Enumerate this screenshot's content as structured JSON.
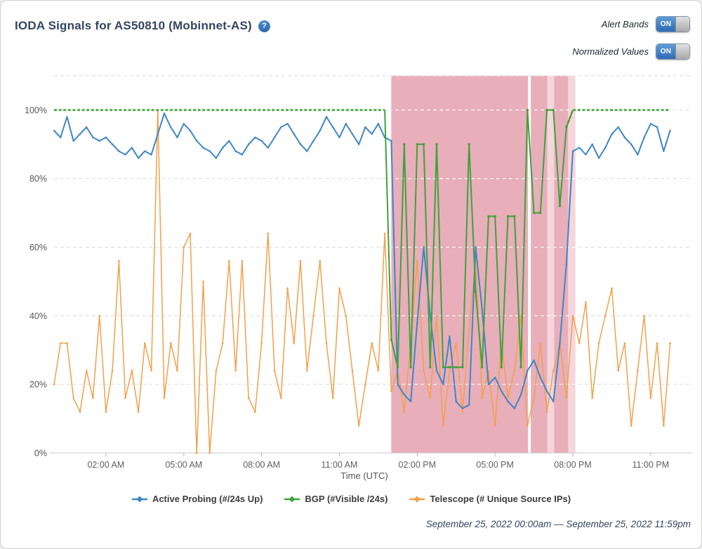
{
  "header": {
    "title": "IODA Signals for AS50810 (Mobinnet-AS)",
    "help_glyph": "?"
  },
  "toggles": [
    {
      "label": "Alert Bands",
      "state": "ON"
    },
    {
      "label": "Normalized Values",
      "state": "ON"
    }
  ],
  "chart_data": {
    "type": "line",
    "xlabel": "Time (UTC)",
    "x_domain": [
      0,
      24.6
    ],
    "y_domain": [
      0,
      110
    ],
    "grid": "dashed",
    "x_start": 0,
    "x_step": 0.25,
    "x_ticks": [
      {
        "t": 2,
        "label": "02:00 AM"
      },
      {
        "t": 5,
        "label": "05:00 AM"
      },
      {
        "t": 8,
        "label": "08:00 AM"
      },
      {
        "t": 11,
        "label": "11:00 AM"
      },
      {
        "t": 14,
        "label": "02:00 PM"
      },
      {
        "t": 17,
        "label": "05:00 PM"
      },
      {
        "t": 20,
        "label": "08:00 PM"
      },
      {
        "t": 23,
        "label": "11:00 PM"
      }
    ],
    "y_ticks": [
      {
        "v": 0,
        "label": "0%"
      },
      {
        "v": 20,
        "label": "20%"
      },
      {
        "v": 40,
        "label": "40%"
      },
      {
        "v": 60,
        "label": "60%"
      },
      {
        "v": 80,
        "label": "80%"
      },
      {
        "v": 100,
        "label": "100%"
      }
    ],
    "series": [
      {
        "name": "Active Probing (#/24s Up)",
        "color": "#3f86c5",
        "values": [
          94,
          92,
          98,
          91,
          93,
          95,
          92,
          91,
          92,
          90,
          88,
          87,
          89,
          86,
          88,
          87,
          93,
          99,
          95,
          92,
          96,
          94,
          91,
          89,
          88,
          86,
          89,
          91,
          88,
          87,
          90,
          92,
          91,
          89,
          92,
          95,
          96,
          93,
          90,
          88,
          91,
          94,
          98,
          95,
          92,
          96,
          93,
          90,
          95,
          93,
          96,
          92,
          91,
          20,
          17,
          15,
          38,
          60,
          40,
          24,
          20,
          34,
          15,
          13,
          14,
          60,
          42,
          20,
          22,
          18,
          15,
          13,
          17,
          24,
          27,
          22,
          18,
          15,
          32,
          55,
          88,
          89,
          87,
          90,
          86,
          89,
          93,
          95,
          92,
          90,
          87,
          92,
          96,
          95,
          88,
          94
        ]
      },
      {
        "name": "BGP (#Visible /24s)",
        "color": "#3fa23c",
        "values": [
          100,
          100,
          100,
          100,
          100,
          100,
          100,
          100,
          100,
          100,
          100,
          100,
          100,
          100,
          100,
          100,
          100,
          100,
          100,
          100,
          100,
          100,
          100,
          100,
          100,
          100,
          100,
          100,
          100,
          100,
          100,
          100,
          100,
          100,
          100,
          100,
          100,
          100,
          100,
          100,
          100,
          100,
          100,
          100,
          100,
          100,
          100,
          100,
          100,
          100,
          100,
          100,
          33,
          25,
          90,
          25,
          90,
          90,
          25,
          90,
          25,
          25,
          25,
          25,
          90,
          47,
          25,
          69,
          69,
          25,
          69,
          69,
          25,
          100,
          70,
          70,
          100,
          100,
          72,
          95,
          100,
          100,
          100,
          100,
          100,
          100,
          100,
          100,
          100,
          100,
          100,
          100,
          100,
          100,
          100,
          100
        ]
      },
      {
        "name": "Telescope (# Unique Source IPs)",
        "color": "#f2a04b",
        "values": [
          20,
          32,
          32,
          16,
          12,
          24,
          16,
          40,
          12,
          24,
          56,
          16,
          24,
          12,
          32,
          24,
          100,
          16,
          32,
          24,
          60,
          64,
          0,
          50,
          0,
          24,
          32,
          56,
          24,
          56,
          16,
          12,
          32,
          64,
          24,
          16,
          48,
          32,
          56,
          24,
          40,
          56,
          32,
          16,
          48,
          40,
          24,
          8,
          20,
          32,
          24,
          64,
          18,
          24,
          12,
          32,
          56,
          24,
          16,
          40,
          8,
          24,
          32,
          12,
          36,
          56,
          16,
          24,
          8,
          32,
          16,
          24,
          40,
          8,
          16,
          32,
          12,
          24,
          32,
          16,
          40,
          32,
          44,
          16,
          32,
          40,
          48,
          24,
          32,
          8,
          24,
          40,
          16,
          32,
          8,
          32
        ]
      }
    ],
    "alert_bands": [
      {
        "start": 13.0,
        "end": 18.27,
        "shade": "normal"
      },
      {
        "start": 18.38,
        "end": 19.02,
        "shade": "normal"
      },
      {
        "start": 19.02,
        "end": 19.28,
        "shade": "light"
      },
      {
        "start": 19.28,
        "end": 19.82,
        "shade": "normal"
      },
      {
        "start": 19.82,
        "end": 20.1,
        "shade": "light"
      }
    ],
    "band_colors": {
      "normal": "#e8aeba",
      "light": "#f4d6db"
    },
    "colors": {
      "grid": "#d9d9d9",
      "grid_on_band": "rgba(255,255,255,0.92)",
      "axis": "#c8c8c8",
      "tick_text": "#606060"
    },
    "legend_position": "bottom"
  },
  "footer": {
    "date_range": "September 25, 2022 00:00am — September 25, 2022 11:59pm"
  }
}
